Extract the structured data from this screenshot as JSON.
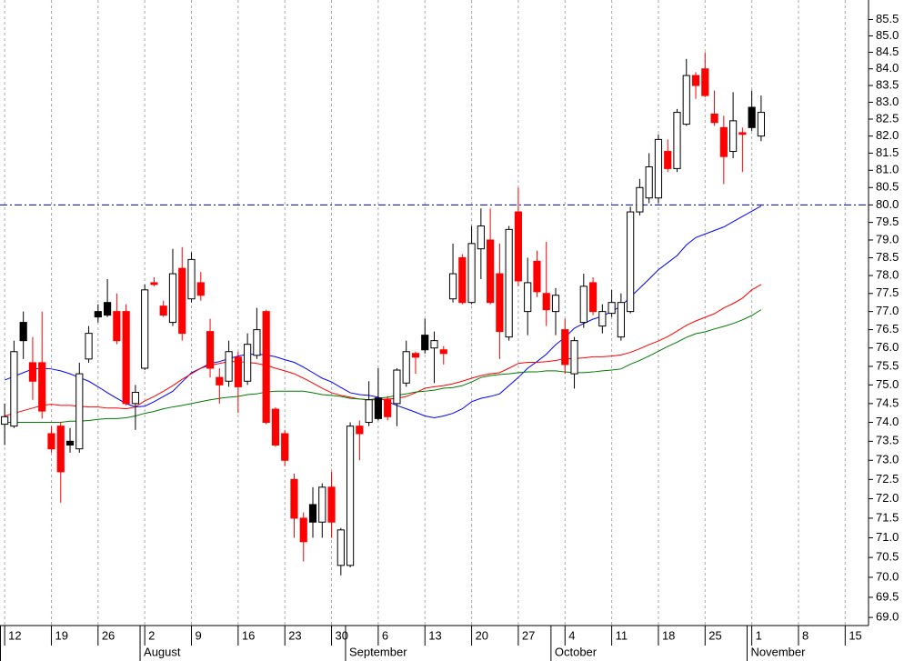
{
  "chart_data": {
    "type": "candlestick",
    "categories": [
      "12",
      null,
      null,
      null,
      null,
      "19",
      null,
      null,
      null,
      null,
      "26",
      null,
      null,
      null,
      null,
      "2",
      null,
      null,
      null,
      null,
      "9",
      null,
      null,
      null,
      null,
      "16",
      null,
      null,
      null,
      null,
      "23",
      null,
      null,
      null,
      null,
      "30",
      null,
      null,
      null,
      null,
      "6",
      null,
      null,
      null,
      null,
      "13",
      null,
      null,
      null,
      null,
      "20",
      null,
      null,
      null,
      null,
      "27",
      null,
      null,
      null,
      null,
      "4",
      null,
      null,
      null,
      null,
      "11",
      null,
      null,
      null,
      null,
      "18",
      null,
      null,
      null,
      null,
      "25",
      null,
      null,
      null,
      null,
      "1",
      null,
      null,
      null,
      null,
      "8",
      null,
      null,
      null,
      null,
      "15",
      null,
      null
    ],
    "month_labels": [
      null,
      null,
      null,
      null,
      null,
      null,
      null,
      null,
      null,
      null,
      null,
      null,
      null,
      null,
      null,
      "August",
      null,
      null,
      null,
      null,
      null,
      null,
      null,
      null,
      null,
      null,
      null,
      null,
      null,
      null,
      null,
      null,
      null,
      null,
      null,
      null,
      null,
      "September",
      null,
      null,
      null,
      null,
      null,
      null,
      null,
      null,
      null,
      null,
      null,
      null,
      null,
      null,
      null,
      null,
      null,
      null,
      null,
      null,
      null,
      "October",
      null,
      null,
      null,
      null,
      null,
      null,
      null,
      null,
      null,
      null,
      null,
      null,
      null,
      null,
      null,
      null,
      null,
      null,
      null,
      null,
      "November",
      null,
      null,
      null,
      null,
      null,
      null,
      null,
      null,
      null,
      null,
      null,
      null
    ],
    "open": [
      73.95,
      73.9,
      76.2,
      75.6,
      75.6,
      73.7,
      73.9,
      73.4,
      73.3,
      75.7,
      76.85,
      76.9,
      77.0,
      77.0,
      74.5,
      75.45,
      77.8,
      77.15,
      76.7,
      78.2,
      77.35,
      77.8,
      76.45,
      75.2,
      75.1,
      75.75,
      75.1,
      75.8,
      77.0,
      74.35,
      73.7,
      72.5,
      71.5,
      71.4,
      71.4,
      72.3,
      70.3,
      70.3,
      73.9,
      74.0,
      74.1,
      74.6,
      74.5,
      75.05,
      75.85,
      75.95,
      76.0,
      75.95,
      77.35,
      78.5,
      77.25,
      78.75,
      79.0,
      78.05,
      76.3,
      79.8,
      77.0,
      78.4,
      77.5,
      77.0,
      76.5,
      75.3,
      76.7,
      77.8,
      76.6,
      76.95,
      76.3,
      77.0,
      79.8,
      80.2,
      80.2,
      81.55,
      81.05,
      82.35,
      83.8,
      84.0,
      82.65,
      82.25,
      81.55,
      82.1,
      82.25,
      82.0,
      null,
      null,
      null,
      null,
      null,
      null,
      null,
      null,
      null,
      null,
      null
    ],
    "high": [
      74.5,
      76.2,
      77.0,
      76.3,
      77.0,
      73.9,
      74.0,
      73.85,
      75.6,
      76.6,
      77.2,
      77.9,
      77.5,
      77.2,
      75.0,
      77.75,
      77.95,
      77.3,
      78.75,
      78.8,
      78.65,
      78.1,
      76.8,
      75.45,
      76.2,
      75.9,
      76.4,
      77.1,
      77.05,
      74.4,
      73.8,
      72.65,
      71.65,
      72.3,
      72.4,
      72.7,
      71.25,
      74.0,
      74.05,
      75.1,
      75.45,
      74.7,
      75.45,
      76.2,
      75.9,
      76.8,
      76.45,
      76.05,
      78.9,
      78.6,
      79.4,
      79.9,
      79.9,
      78.9,
      79.4,
      80.5,
      78.5,
      78.7,
      78.95,
      77.65,
      76.8,
      76.3,
      78.05,
      77.95,
      77.2,
      77.6,
      77.5,
      79.95,
      80.75,
      81.5,
      82.05,
      81.9,
      82.8,
      84.3,
      83.9,
      84.5,
      83.35,
      82.6,
      83.3,
      82.25,
      83.35,
      83.2,
      null,
      null,
      null,
      null,
      null,
      null,
      null,
      null,
      null,
      null,
      null
    ],
    "low": [
      73.4,
      73.85,
      75.7,
      74.6,
      74.1,
      73.2,
      71.9,
      73.2,
      73.2,
      75.6,
      76.7,
      76.85,
      76.1,
      74.45,
      73.8,
      75.4,
      77.7,
      76.85,
      76.6,
      76.2,
      77.25,
      77.3,
      75.2,
      74.5,
      74.95,
      74.25,
      75.0,
      75.7,
      73.95,
      73.35,
      72.85,
      71.0,
      70.4,
      71.0,
      71.0,
      71.0,
      70.05,
      70.25,
      73.0,
      73.9,
      74.05,
      74.05,
      73.9,
      74.95,
      75.3,
      75.85,
      75.05,
      75.55,
      77.25,
      77.2,
      77.2,
      77.9,
      77.2,
      75.7,
      76.2,
      77.7,
      76.35,
      77.4,
      76.6,
      76.35,
      75.3,
      74.9,
      76.55,
      76.9,
      76.4,
      76.85,
      76.2,
      76.95,
      79.7,
      80.05,
      80.05,
      80.95,
      80.95,
      82.3,
      83.1,
      83.15,
      82.3,
      80.6,
      81.35,
      80.95,
      82.15,
      81.85,
      null,
      null,
      null,
      null,
      null,
      null,
      null,
      null,
      null,
      null,
      null
    ],
    "close": [
      74.15,
      75.9,
      76.7,
      75.1,
      74.3,
      73.3,
      72.7,
      73.5,
      75.3,
      76.4,
      77.0,
      77.25,
      76.2,
      74.5,
      74.8,
      77.6,
      77.75,
      76.9,
      78.05,
      76.4,
      78.45,
      77.45,
      75.45,
      75.0,
      75.9,
      74.95,
      76.1,
      76.5,
      74.0,
      73.4,
      73.0,
      71.5,
      70.9,
      71.85,
      72.3,
      71.4,
      71.2,
      73.9,
      73.7,
      74.6,
      74.65,
      74.15,
      75.4,
      75.9,
      75.75,
      76.35,
      76.2,
      75.85,
      78.05,
      77.25,
      78.9,
      79.4,
      77.25,
      76.45,
      79.3,
      77.85,
      77.8,
      77.55,
      77.05,
      77.45,
      75.55,
      76.2,
      77.7,
      77.0,
      77.0,
      77.25,
      77.25,
      79.8,
      80.5,
      81.1,
      81.9,
      81.05,
      82.7,
      83.8,
      83.5,
      83.2,
      82.4,
      81.4,
      82.45,
      82.05,
      82.85,
      82.7,
      null,
      null,
      null,
      null,
      null,
      null,
      null,
      null,
      null,
      null,
      null
    ],
    "colors": [
      "#ffffff",
      "#ffffff",
      "#000000",
      "#ff0000",
      "#ff0000",
      "#ff0000",
      "#ff0000",
      "#000000",
      "#ffffff",
      "#ffffff",
      "#000000",
      "#000000",
      "#ff0000",
      "#ff0000",
      "#ffffff",
      "#ffffff",
      "#ff0000",
      "#ff0000",
      "#ffffff",
      "#ff0000",
      "#ffffff",
      "#ff0000",
      "#ff0000",
      "#ff0000",
      "#ffffff",
      "#ff0000",
      "#ffffff",
      "#ffffff",
      "#ff0000",
      "#ff0000",
      "#ff0000",
      "#ff0000",
      "#ff0000",
      "#000000",
      "#ffffff",
      "#ff0000",
      "#ffffff",
      "#ffffff",
      "#ff0000",
      "#ffffff",
      "#000000",
      "#ff0000",
      "#ffffff",
      "#ffffff",
      "#ff0000",
      "#000000",
      "#ffffff",
      "#ff0000",
      "#ffffff",
      "#ff0000",
      "#ffffff",
      "#ffffff",
      "#ff0000",
      "#ff0000",
      "#ffffff",
      "#ff0000",
      "#ffffff",
      "#ff0000",
      "#ff0000",
      "#ffffff",
      "#ff0000",
      "#ffffff",
      "#ffffff",
      "#ff0000",
      "#ffffff",
      "#ffffff",
      "#ffffff",
      "#ffffff",
      "#ffffff",
      "#ffffff",
      "#ffffff",
      "#ff0000",
      "#ffffff",
      "#ffffff",
      "#ff0000",
      "#ff0000",
      "#ff0000",
      "#ff0000",
      "#ffffff",
      "#ff0000",
      "#000000",
      "#ffffff",
      null,
      null,
      null,
      null,
      null,
      null,
      null,
      null,
      null,
      null,
      null
    ],
    "lines": [
      {
        "color": "#0000ff",
        "values": [
          75.13,
          75.23,
          75.33,
          75.43,
          75.45,
          75.43,
          75.38,
          75.3,
          75.2,
          75.1,
          74.95,
          74.79,
          74.64,
          74.5,
          74.41,
          74.43,
          74.55,
          74.69,
          74.83,
          75.08,
          75.33,
          75.45,
          75.58,
          75.63,
          75.71,
          75.78,
          75.83,
          75.83,
          75.81,
          75.76,
          75.68,
          75.61,
          75.48,
          75.33,
          75.18,
          75.08,
          74.93,
          74.79,
          74.74,
          74.72,
          74.67,
          74.55,
          74.45,
          74.36,
          74.27,
          74.17,
          74.12,
          74.17,
          74.24,
          74.36,
          74.55,
          74.64,
          74.69,
          74.76,
          74.98,
          75.2,
          75.45,
          75.63,
          75.83,
          76.09,
          76.29,
          76.54,
          76.67,
          76.79,
          76.87,
          77.0,
          77.15,
          77.4,
          77.65,
          77.9,
          78.16,
          78.36,
          78.56,
          78.86,
          79.07,
          79.17,
          79.27,
          79.37,
          79.52,
          79.67,
          79.82,
          79.97,
          null,
          null,
          null,
          null,
          null,
          null,
          null,
          null,
          null,
          null,
          null
        ]
      },
      {
        "color": "#ff0000",
        "values": [
          74.17,
          74.24,
          74.31,
          74.38,
          74.45,
          74.48,
          74.45,
          74.45,
          74.43,
          74.41,
          74.41,
          74.38,
          74.38,
          74.36,
          74.41,
          74.57,
          74.69,
          74.83,
          74.98,
          75.15,
          75.3,
          75.45,
          75.53,
          75.58,
          75.63,
          75.63,
          75.61,
          75.58,
          75.53,
          75.45,
          75.38,
          75.3,
          75.18,
          75.05,
          74.91,
          74.79,
          74.72,
          74.67,
          74.62,
          74.6,
          74.6,
          74.62,
          74.64,
          74.69,
          74.79,
          74.91,
          74.95,
          74.98,
          75.03,
          75.1,
          75.18,
          75.25,
          75.3,
          75.33,
          75.45,
          75.58,
          75.61,
          75.61,
          75.63,
          75.66,
          75.71,
          75.71,
          75.73,
          75.76,
          75.76,
          75.78,
          75.81,
          75.88,
          75.98,
          76.09,
          76.19,
          76.31,
          76.46,
          76.62,
          76.74,
          76.84,
          76.94,
          77.1,
          77.22,
          77.37,
          77.6,
          77.75,
          null,
          null,
          null,
          null,
          null,
          null,
          null,
          null,
          null,
          null,
          null
        ]
      },
      {
        "color": "#007a00",
        "values": [
          74.0,
          74.0,
          74.0,
          74.0,
          74.0,
          74.0,
          74.0,
          74.03,
          74.03,
          74.05,
          74.08,
          74.1,
          74.1,
          74.12,
          74.17,
          74.24,
          74.29,
          74.36,
          74.41,
          74.45,
          74.5,
          74.55,
          74.6,
          74.64,
          74.67,
          74.69,
          74.74,
          74.76,
          74.81,
          74.83,
          74.83,
          74.83,
          74.83,
          74.79,
          74.74,
          74.72,
          74.69,
          74.64,
          74.62,
          74.6,
          74.64,
          74.67,
          74.72,
          74.76,
          74.81,
          74.83,
          74.86,
          74.91,
          74.93,
          74.98,
          75.08,
          75.2,
          75.25,
          75.28,
          75.3,
          75.33,
          75.35,
          75.35,
          75.38,
          75.38,
          75.35,
          75.33,
          75.33,
          75.35,
          75.38,
          75.4,
          75.43,
          75.56,
          75.66,
          75.78,
          75.91,
          76.04,
          76.16,
          76.29,
          76.39,
          76.44,
          76.52,
          76.59,
          76.67,
          76.77,
          76.89,
          77.05,
          null,
          null,
          null,
          null,
          null,
          null,
          null,
          null,
          null,
          null,
          null
        ]
      }
    ],
    "hline": {
      "value": 80,
      "color": "#0000aa"
    },
    "ylim": [
      68.8,
      86.1
    ],
    "log_y": true,
    "yticks": [
      {
        "value": 69,
        "label": "69.0"
      },
      69.5,
      {
        "value": 70,
        "label": "70.0"
      },
      70.5,
      {
        "value": 71,
        "label": "71.0"
      },
      71.5,
      {
        "value": 72,
        "label": "72.0"
      },
      72.5,
      {
        "value": 73,
        "label": "73.0"
      },
      73.5,
      {
        "value": 74,
        "label": "74.0"
      },
      74.5,
      {
        "value": 75,
        "label": "75.0"
      },
      75.5,
      {
        "value": 76,
        "label": "76.0"
      },
      76.5,
      {
        "value": 77,
        "label": "77.0"
      },
      77.5,
      {
        "value": 78,
        "label": "78.0"
      },
      78.5,
      {
        "value": 79,
        "label": "79.0"
      },
      79.5,
      {
        "value": 80,
        "label": "80.0"
      },
      80.5,
      {
        "value": 81,
        "label": "81.0"
      },
      81.5,
      {
        "value": 82,
        "label": "82.0"
      },
      82.5,
      {
        "value": 83,
        "label": "83.0"
      },
      83.5,
      {
        "value": 84,
        "label": "84.0"
      },
      84.5,
      {
        "value": 85,
        "label": "85.0"
      },
      85.5
    ],
    "grid": true
  }
}
